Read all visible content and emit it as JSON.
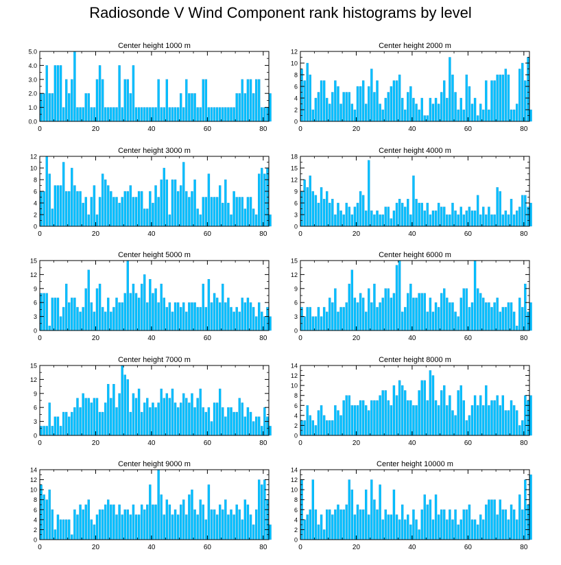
{
  "title": "Radiosonde V Wind Component rank histograms by level",
  "colors": {
    "bar_fill": "#00bfff",
    "bar_stroke": "#1a8fd0",
    "axis": "#000000"
  },
  "chart_data": [
    {
      "type": "bar",
      "subtitle": "Center height 1000 m",
      "xlabel": "",
      "ylabel": "",
      "xlim": [
        0,
        82
      ],
      "ylim": [
        0,
        5
      ],
      "xticks": [
        0,
        20,
        40,
        60,
        80
      ],
      "yticks": [
        "0.0",
        "1.0",
        "2.0",
        "3.0",
        "4.0",
        "5.0"
      ],
      "grid": false,
      "legend": "none",
      "x_start": 0,
      "values": [
        2,
        2,
        4,
        2,
        2,
        4,
        4,
        4,
        1,
        3,
        2,
        3,
        5,
        1,
        1,
        1,
        2,
        2,
        1,
        1,
        3,
        4,
        3,
        1,
        1,
        1,
        1,
        1,
        4,
        1,
        3,
        3,
        2,
        4,
        1,
        1,
        1,
        1,
        1,
        1,
        1,
        1,
        3,
        1,
        1,
        3,
        1,
        1,
        1,
        1,
        2,
        1,
        3,
        2,
        2,
        2,
        1,
        1,
        3,
        3,
        1,
        1,
        1,
        1,
        1,
        1,
        1,
        1,
        1,
        1,
        2,
        2,
        3,
        2,
        3,
        3,
        2,
        3,
        3,
        1,
        1,
        1,
        2
      ]
    },
    {
      "type": "bar",
      "subtitle": "Center height 2000 m",
      "xlabel": "",
      "ylabel": "",
      "xlim": [
        0,
        82
      ],
      "ylim": [
        0,
        12
      ],
      "xticks": [
        0,
        20,
        40,
        60,
        80
      ],
      "yticks": [
        "0",
        "2",
        "4",
        "6",
        "8",
        "10",
        "12"
      ],
      "grid": false,
      "legend": "none",
      "x_start": 0,
      "values": [
        9,
        7,
        10,
        8,
        2,
        4,
        5,
        7,
        7,
        4,
        3,
        5,
        7,
        6,
        3,
        5,
        5,
        5,
        3,
        2,
        6,
        6,
        7,
        3,
        6,
        9,
        5,
        7,
        3,
        2,
        4,
        5,
        6,
        7,
        7,
        8,
        4,
        2,
        5,
        6,
        4,
        3,
        2,
        4,
        1,
        1,
        4,
        3,
        4,
        3,
        5,
        7,
        4,
        11,
        8,
        5,
        2,
        4,
        2,
        8,
        6,
        3,
        4,
        1,
        3,
        2,
        7,
        2,
        7,
        7,
        8,
        8,
        8,
        9,
        8,
        2,
        2,
        3,
        9,
        10,
        7,
        11,
        2
      ]
    },
    {
      "type": "bar",
      "subtitle": "Center height 3000 m",
      "xlabel": "",
      "ylabel": "",
      "xlim": [
        0,
        82
      ],
      "ylim": [
        0,
        12
      ],
      "xticks": [
        0,
        20,
        40,
        60,
        80
      ],
      "yticks": [
        "0",
        "2",
        "4",
        "6",
        "8",
        "10",
        "12"
      ],
      "grid": false,
      "legend": "none",
      "x_start": 0,
      "values": [
        6,
        6,
        12,
        9,
        3,
        7,
        7,
        7,
        11,
        6,
        6,
        10,
        7,
        6,
        6,
        4,
        5,
        2,
        5,
        7,
        2,
        5,
        9,
        8,
        7,
        6,
        5,
        5,
        4,
        5,
        6,
        6,
        7,
        5,
        5,
        6,
        6,
        3,
        3,
        6,
        4,
        7,
        5,
        8,
        10,
        8,
        2,
        8,
        8,
        6,
        7,
        11,
        6,
        5,
        6,
        8,
        3,
        2,
        5,
        5,
        9,
        5,
        5,
        5,
        7,
        4,
        8,
        4,
        2,
        6,
        5,
        5,
        5,
        3,
        5,
        5,
        3,
        2,
        9,
        10,
        9,
        10,
        2
      ]
    },
    {
      "type": "bar",
      "subtitle": "Center height 4000 m",
      "xlabel": "",
      "ylabel": "",
      "xlim": [
        0,
        82
      ],
      "ylim": [
        0,
        18
      ],
      "xticks": [
        0,
        20,
        40,
        60,
        80
      ],
      "yticks": [
        "0",
        "3",
        "6",
        "9",
        "12",
        "15",
        "18"
      ],
      "grid": false,
      "legend": "none",
      "x_start": 0,
      "values": [
        9,
        12,
        10,
        13,
        9,
        8,
        6,
        10,
        7,
        9,
        6,
        7,
        3,
        6,
        4,
        3,
        6,
        5,
        3,
        5,
        6,
        9,
        8,
        4,
        17,
        4,
        3,
        4,
        3,
        3,
        5,
        5,
        2,
        4,
        6,
        7,
        6,
        5,
        7,
        3,
        13,
        7,
        6,
        6,
        4,
        6,
        3,
        4,
        4,
        6,
        5,
        5,
        3,
        3,
        6,
        4,
        3,
        5,
        3,
        4,
        5,
        4,
        4,
        8,
        3,
        5,
        3,
        5,
        3,
        3,
        10,
        9,
        3,
        4,
        3,
        7,
        3,
        4,
        5,
        8,
        8,
        5,
        6
      ]
    },
    {
      "type": "bar",
      "subtitle": "Center height 5000 m",
      "xlabel": "",
      "ylabel": "",
      "xlim": [
        0,
        82
      ],
      "ylim": [
        0,
        15
      ],
      "xticks": [
        0,
        20,
        40,
        60,
        80
      ],
      "yticks": [
        "0",
        "3",
        "6",
        "9",
        "12",
        "15"
      ],
      "grid": false,
      "legend": "none",
      "x_start": 0,
      "values": [
        8,
        8,
        8,
        1,
        7,
        7,
        7,
        3,
        5,
        10,
        6,
        7,
        7,
        5,
        4,
        5,
        9,
        13,
        6,
        4,
        9,
        10,
        5,
        4,
        7,
        4,
        5,
        7,
        6,
        6,
        8,
        15,
        8,
        10,
        8,
        7,
        10,
        12,
        6,
        11,
        8,
        9,
        6,
        10,
        7,
        5,
        6,
        4,
        6,
        6,
        5,
        6,
        4,
        6,
        6,
        6,
        5,
        5,
        10,
        5,
        11,
        6,
        8,
        7,
        6,
        10,
        6,
        7,
        5,
        4,
        5,
        4,
        7,
        6,
        7,
        6,
        5,
        3,
        6,
        4,
        3,
        5,
        3
      ]
    },
    {
      "type": "bar",
      "subtitle": "Center height 6000 m",
      "xlabel": "",
      "ylabel": "",
      "xlim": [
        0,
        82
      ],
      "ylim": [
        0,
        15
      ],
      "xticks": [
        0,
        20,
        40,
        60,
        80
      ],
      "yticks": [
        "0",
        "3",
        "6",
        "9",
        "12",
        "15"
      ],
      "grid": false,
      "legend": "none",
      "x_start": 0,
      "values": [
        5,
        3,
        5,
        5,
        3,
        3,
        5,
        3,
        5,
        4,
        7,
        6,
        9,
        4,
        5,
        5,
        6,
        10,
        13,
        7,
        6,
        8,
        7,
        4,
        9,
        6,
        10,
        5,
        6,
        7,
        9,
        9,
        7,
        8,
        14,
        15,
        4,
        5,
        8,
        10,
        7,
        7,
        8,
        8,
        8,
        4,
        7,
        4,
        6,
        5,
        8,
        9,
        7,
        6,
        6,
        4,
        3,
        7,
        9,
        9,
        5,
        6,
        15,
        9,
        8,
        7,
        6,
        6,
        5,
        6,
        7,
        4,
        5,
        5,
        6,
        6,
        4,
        1,
        7,
        5,
        10,
        4,
        6
      ]
    },
    {
      "type": "bar",
      "subtitle": "Center height 7000 m",
      "xlabel": "",
      "ylabel": "",
      "xlim": [
        0,
        82
      ],
      "ylim": [
        0,
        15
      ],
      "xticks": [
        0,
        20,
        40,
        60,
        80
      ],
      "yticks": [
        "0",
        "3",
        "6",
        "9",
        "12",
        "15"
      ],
      "grid": false,
      "legend": "none",
      "x_start": 0,
      "values": [
        2,
        2,
        2,
        7,
        2,
        4,
        4,
        2,
        5,
        5,
        4,
        5,
        6,
        8,
        6,
        9,
        8,
        8,
        7,
        8,
        8,
        5,
        5,
        7,
        11,
        8,
        11,
        6,
        9,
        15,
        13,
        12,
        5,
        9,
        8,
        10,
        5,
        7,
        8,
        6,
        7,
        6,
        7,
        10,
        8,
        9,
        8,
        10,
        7,
        6,
        7,
        9,
        8,
        7,
        9,
        6,
        8,
        10,
        6,
        5,
        6,
        3,
        7,
        7,
        10,
        6,
        4,
        6,
        6,
        5,
        5,
        8,
        7,
        4,
        6,
        5,
        3,
        4,
        4,
        2,
        6,
        4,
        2
      ]
    },
    {
      "type": "bar",
      "subtitle": "Center height 8000 m",
      "xlabel": "",
      "ylabel": "",
      "xlim": [
        0,
        82
      ],
      "ylim": [
        0,
        14
      ],
      "xticks": [
        0,
        20,
        40,
        60,
        80
      ],
      "yticks": [
        "0",
        "2",
        "4",
        "6",
        "8",
        "10",
        "12",
        "14"
      ],
      "grid": false,
      "legend": "none",
      "x_start": 0,
      "values": [
        3,
        3,
        6,
        4,
        3,
        2,
        5,
        6,
        4,
        3,
        3,
        3,
        6,
        5,
        4,
        7,
        8,
        8,
        6,
        6,
        6,
        7,
        7,
        6,
        5,
        7,
        7,
        7,
        8,
        9,
        9,
        7,
        6,
        10,
        8,
        11,
        10,
        9,
        7,
        7,
        6,
        6,
        9,
        11,
        11,
        7,
        13,
        12,
        7,
        6,
        9,
        10,
        6,
        8,
        5,
        4,
        9,
        10,
        7,
        3,
        4,
        6,
        8,
        6,
        8,
        6,
        10,
        6,
        7,
        7,
        8,
        6,
        8,
        5,
        5,
        7,
        6,
        5,
        2,
        3,
        8,
        7,
        8
      ]
    },
    {
      "type": "bar",
      "subtitle": "Center height 9000 m",
      "xlabel": "",
      "ylabel": "",
      "xlim": [
        0,
        82
      ],
      "ylim": [
        0,
        14
      ],
      "xticks": [
        0,
        20,
        40,
        60,
        80
      ],
      "yticks": [
        "0",
        "2",
        "4",
        "6",
        "8",
        "10",
        "12",
        "14"
      ],
      "grid": false,
      "legend": "none",
      "x_start": 0,
      "values": [
        11,
        9,
        8,
        10,
        6,
        2,
        5,
        4,
        4,
        4,
        4,
        1,
        6,
        5,
        7,
        6,
        7,
        8,
        4,
        3,
        5,
        6,
        6,
        7,
        8,
        7,
        7,
        5,
        7,
        5,
        6,
        6,
        5,
        7,
        5,
        5,
        7,
        6,
        7,
        11,
        7,
        7,
        14,
        9,
        5,
        8,
        7,
        5,
        6,
        5,
        7,
        8,
        5,
        9,
        10,
        6,
        5,
        8,
        7,
        4,
        11,
        6,
        6,
        5,
        7,
        6,
        8,
        5,
        6,
        5,
        7,
        6,
        4,
        8,
        7,
        5,
        3,
        6,
        12,
        11,
        12,
        8,
        3
      ]
    },
    {
      "type": "bar",
      "subtitle": "Center height 10000 m",
      "xlabel": "",
      "ylabel": "",
      "xlim": [
        0,
        82
      ],
      "ylim": [
        0,
        14
      ],
      "xticks": [
        0,
        20,
        40,
        60,
        80
      ],
      "yticks": [
        "0",
        "2",
        "4",
        "6",
        "8",
        "10",
        "12",
        "14"
      ],
      "grid": false,
      "legend": "none",
      "x_start": 0,
      "values": [
        12,
        4,
        5,
        6,
        12,
        6,
        3,
        5,
        2,
        6,
        6,
        5,
        6,
        7,
        6,
        6,
        7,
        12,
        10,
        5,
        7,
        6,
        6,
        10,
        5,
        12,
        8,
        6,
        11,
        4,
        6,
        5,
        5,
        10,
        5,
        4,
        7,
        4,
        5,
        3,
        6,
        4,
        2,
        6,
        9,
        7,
        8,
        4,
        9,
        5,
        6,
        6,
        4,
        6,
        4,
        6,
        3,
        4,
        6,
        6,
        7,
        4,
        4,
        3,
        5,
        4,
        7,
        8,
        8,
        8,
        5,
        8,
        6,
        6,
        4,
        7,
        6,
        4,
        9,
        6,
        12,
        7,
        13
      ]
    }
  ]
}
